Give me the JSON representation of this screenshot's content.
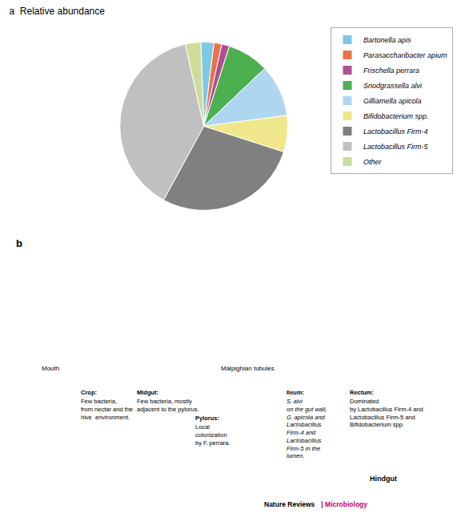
{
  "chart_data": {
    "type": "pie",
    "title": "a  Relative abundance",
    "categories": [
      "Bartonella apis",
      "Parasaccharibacter apium",
      "Frischella perrara",
      "Snodgrassella alvi",
      "Gilliamella apicola",
      "Bifidobacterium spp.",
      "Lactobacillus Firm-4",
      "Lactobacillus Firm-5",
      "Other"
    ],
    "values": [
      2.5,
      1.5,
      1.5,
      8.0,
      10.0,
      7.0,
      28.0,
      38.5,
      3.0
    ],
    "colors": [
      "#7EC8E3",
      "#E8734A",
      "#B05090",
      "#4CAF50",
      "#AED6F1",
      "#F0E68C",
      "#808080",
      "#C0C0C0",
      "#CCDD99"
    ],
    "legend": "upper right",
    "annotations": [
      {
        "text": "b"
      },
      {
        "text": "Mouth"
      },
      {
        "text": "Malpighian tubules"
      },
      {
        "text": "Crop:"
      },
      {
        "text": "Few bacteria,\nfrom nectar and the\nhive  environment."
      },
      {
        "text": "Midgut:"
      },
      {
        "text": "Few bacteria, mostly\nadjacent to the pylorus."
      },
      {
        "text": "Pylorus:"
      },
      {
        "text": "Local\ncolonization\nby F. perrara."
      },
      {
        "text": "Ileum:"
      },
      {
        "text": "S. alvi\non the gut wall,\nG. apicola and\nLactobacillus\nFirm-4 and\nLactobacillus\nFirm-5 in the\nlumen."
      },
      {
        "text": "Rectum:"
      },
      {
        "text": "Dominated\nby Lactobacillus Firm-4 and\nLactobacillus Firm-5 and\nBifidobacterium spp."
      },
      {
        "text": "Hindgut"
      },
      {
        "text": "Nature Reviews",
        "color": "#000000"
      },
      {
        "text": " | Microbiology",
        "color": "#CC0066"
      }
    ]
  }
}
